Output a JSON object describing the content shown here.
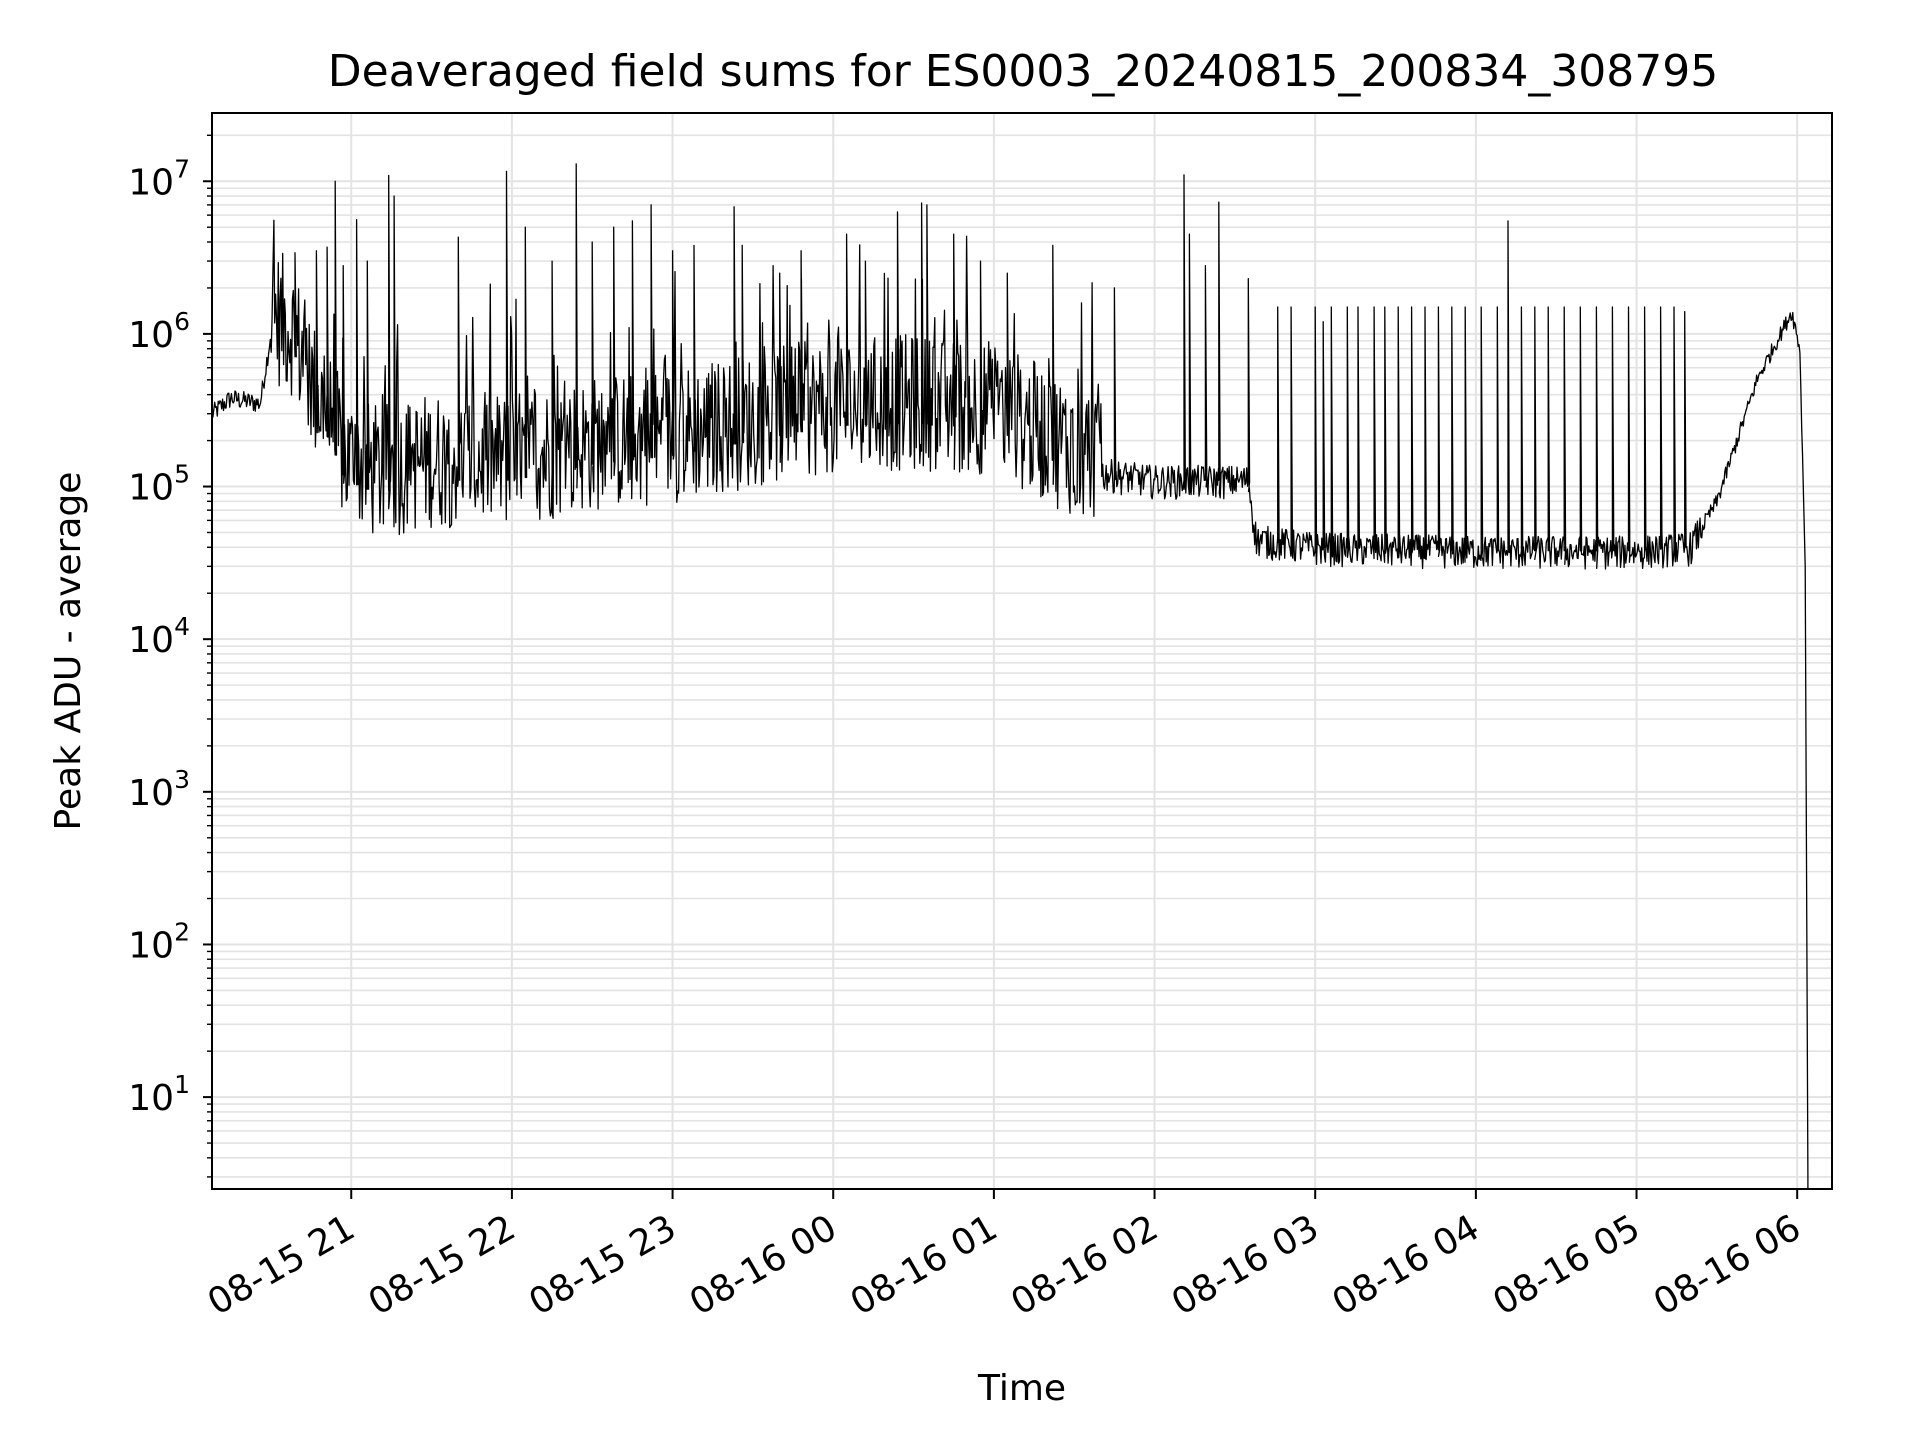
{
  "chart_data": {
    "type": "line",
    "title": "Deaveraged field sums for ES0003_20240815_200834_308795",
    "xlabel": "Time",
    "ylabel": "Peak ADU - average",
    "yscale": "log",
    "ylim": [
      2.5,
      28000000
    ],
    "xlim": [
      "2024-08-15 20:08",
      "2024-08-16 06:13"
    ],
    "grid": true,
    "line_color": "#000000",
    "grid_color": "#e3e3e3",
    "x_ticks": [
      "08-15 21",
      "08-15 22",
      "08-15 23",
      "08-16 00",
      "08-16 01",
      "08-16 02",
      "08-16 03",
      "08-16 04",
      "08-16 05",
      "08-16 06"
    ],
    "y_ticks": [
      {
        "value": 10,
        "base": "10",
        "exp": "1"
      },
      {
        "value": 100,
        "base": "10",
        "exp": "2"
      },
      {
        "value": 1000,
        "base": "10",
        "exp": "3"
      },
      {
        "value": 10000,
        "base": "10",
        "exp": "4"
      },
      {
        "value": 100000,
        "base": "10",
        "exp": "5"
      },
      {
        "value": 1000000,
        "base": "10",
        "exp": "6"
      },
      {
        "value": 10000000,
        "base": "10",
        "exp": "7"
      }
    ],
    "series": [
      {
        "points": [
          [
            "2024-08-15 20:08",
            300000
          ],
          [
            "2024-08-15 20:15",
            380000
          ],
          [
            "2024-08-15 20:26",
            350000
          ],
          [
            "2024-08-15 20:30",
            1000000
          ],
          [
            "2024-08-15 20:38",
            800000
          ],
          [
            "2024-08-15 20:45",
            350000
          ],
          [
            "2024-08-15 20:52",
            200000
          ],
          [
            "2024-08-15 20:58",
            110000
          ],
          [
            "2024-08-15 21:10",
            90000
          ],
          [
            "2024-08-15 21:30",
            110000
          ],
          [
            "2024-08-15 22:00",
            110000
          ],
          [
            "2024-08-15 22:30",
            140000
          ],
          [
            "2024-08-15 23:00",
            160000
          ],
          [
            "2024-08-15 23:30",
            200000
          ],
          [
            "2024-08-16 00:00",
            250000
          ],
          [
            "2024-08-16 00:30",
            260000
          ],
          [
            "2024-08-16 01:00",
            240000
          ],
          [
            "2024-08-16 01:30",
            130000
          ],
          [
            "2024-08-16 02:00",
            110000
          ],
          [
            "2024-08-16 02:35",
            110000
          ],
          [
            "2024-08-16 02:38",
            45000
          ],
          [
            "2024-08-16 03:00",
            40000
          ],
          [
            "2024-08-16 04:00",
            38000
          ],
          [
            "2024-08-16 05:00",
            38000
          ],
          [
            "2024-08-16 05:20",
            40000
          ],
          [
            "2024-08-16 05:30",
            80000
          ],
          [
            "2024-08-16 05:45",
            500000
          ],
          [
            "2024-08-16 05:58",
            1400000
          ],
          [
            "2024-08-16 06:01",
            800000
          ],
          [
            "2024-08-16 06:03",
            30000
          ],
          [
            "2024-08-16 06:04",
            3
          ]
        ]
      }
    ],
    "spikes": [
      [
        "2024-08-15 20:39",
        3400000
      ],
      [
        "2024-08-15 20:47",
        3500000
      ],
      [
        "2024-08-15 20:51",
        3700000
      ],
      [
        "2024-08-15 20:54",
        10000000
      ],
      [
        "2024-08-15 20:57",
        2800000
      ],
      [
        "2024-08-15 21:02",
        5600000
      ],
      [
        "2024-08-15 21:06",
        3000000
      ],
      [
        "2024-08-15 21:14",
        10900000
      ],
      [
        "2024-08-15 21:16",
        8000000
      ],
      [
        "2024-08-15 21:40",
        4300000
      ],
      [
        "2024-08-15 21:58",
        11600000
      ],
      [
        "2024-08-15 22:05",
        5000000
      ],
      [
        "2024-08-15 22:15",
        3000000
      ],
      [
        "2024-08-15 22:24",
        13000000
      ],
      [
        "2024-08-15 22:30",
        4000000
      ],
      [
        "2024-08-15 22:38",
        5000000
      ],
      [
        "2024-08-15 22:45",
        5500000
      ],
      [
        "2024-08-15 22:52",
        7000000
      ],
      [
        "2024-08-15 23:00",
        3500000
      ],
      [
        "2024-08-15 23:08",
        3800000
      ],
      [
        "2024-08-15 23:23",
        6800000
      ],
      [
        "2024-08-15 23:26",
        3800000
      ],
      [
        "2024-08-15 23:40",
        2500000
      ],
      [
        "2024-08-15 23:48",
        3500000
      ],
      [
        "2024-08-16 00:05",
        4500000
      ],
      [
        "2024-08-16 00:12",
        3000000
      ],
      [
        "2024-08-16 00:24",
        6300000
      ],
      [
        "2024-08-16 00:33",
        7200000
      ],
      [
        "2024-08-16 00:35",
        7000000
      ],
      [
        "2024-08-16 00:45",
        4500000
      ],
      [
        "2024-08-16 00:55",
        3000000
      ],
      [
        "2024-08-16 01:05",
        2500000
      ],
      [
        "2024-08-16 01:22",
        3800000
      ],
      [
        "2024-08-16 01:45",
        2000000
      ],
      [
        "2024-08-16 02:11",
        11000000
      ],
      [
        "2024-08-16 02:13",
        4500000
      ],
      [
        "2024-08-16 02:19",
        2800000
      ],
      [
        "2024-08-16 02:24",
        7300000
      ],
      [
        "2024-08-16 02:35",
        2300000
      ],
      [
        "2024-08-16 02:46",
        1500000
      ],
      [
        "2024-08-16 02:51",
        1500000
      ],
      [
        "2024-08-16 03:00",
        1500000
      ],
      [
        "2024-08-16 03:03",
        1200000
      ],
      [
        "2024-08-16 03:06",
        1500000
      ],
      [
        "2024-08-16 03:12",
        1500000
      ],
      [
        "2024-08-16 03:16",
        1500000
      ],
      [
        "2024-08-16 03:22",
        1500000
      ],
      [
        "2024-08-16 03:26",
        1500000
      ],
      [
        "2024-08-16 03:31",
        1500000
      ],
      [
        "2024-08-16 03:36",
        1500000
      ],
      [
        "2024-08-16 03:41",
        1500000
      ],
      [
        "2024-08-16 03:46",
        1500000
      ],
      [
        "2024-08-16 03:51",
        1500000
      ],
      [
        "2024-08-16 03:56",
        1500000
      ],
      [
        "2024-08-16 04:02",
        1500000
      ],
      [
        "2024-08-16 04:08",
        1500000
      ],
      [
        "2024-08-16 04:12",
        5500000
      ],
      [
        "2024-08-16 04:17",
        1500000
      ],
      [
        "2024-08-16 04:22",
        1500000
      ],
      [
        "2024-08-16 04:27",
        1500000
      ],
      [
        "2024-08-16 04:33",
        1500000
      ],
      [
        "2024-08-16 04:39",
        1500000
      ],
      [
        "2024-08-16 04:45",
        1500000
      ],
      [
        "2024-08-16 04:51",
        1500000
      ],
      [
        "2024-08-16 04:57",
        1500000
      ],
      [
        "2024-08-16 05:03",
        1500000
      ],
      [
        "2024-08-16 05:09",
        1500000
      ],
      [
        "2024-08-16 05:14",
        1500000
      ],
      [
        "2024-08-16 05:18",
        1400000
      ]
    ]
  }
}
